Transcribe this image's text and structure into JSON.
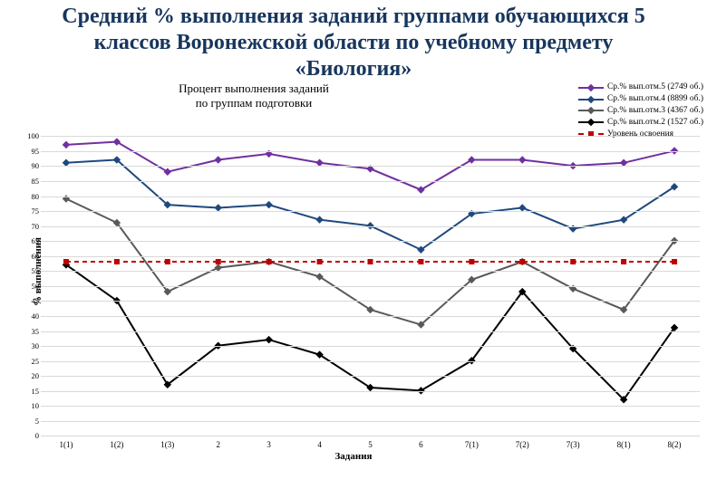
{
  "title": "Средний % выполнения заданий группами обучающихся 5 классов Воронежской области по учебному предмету «Биология»",
  "chart": {
    "subtitle": "Процент выполнения заданий\nпо группам подготовки",
    "ylabel": "% выполнения",
    "xlabel": "Задания",
    "ylim": [
      0,
      100
    ],
    "ytick_step": 5,
    "grid_color": "#d9d9d9",
    "background_color": "#ffffff",
    "categories": [
      "1(1)",
      "1(2)",
      "1(3)",
      "2",
      "3",
      "4",
      "5",
      "6",
      "7(1)",
      "7(2)",
      "7(3)",
      "8(1)",
      "8(2)"
    ],
    "series": [
      {
        "name": "Ср.% вып.отм.5 (2749 об.)",
        "color": "#7030a0",
        "marker": "diamond",
        "linewidth": 2,
        "values": [
          97,
          98,
          88,
          92,
          94,
          91,
          89,
          82,
          92,
          92,
          90,
          91,
          95
        ]
      },
      {
        "name": "Ср.% вып.отм.4 (8899 об.)",
        "color": "#1f497d",
        "marker": "diamond",
        "linewidth": 2,
        "values": [
          91,
          92,
          77,
          76,
          77,
          72,
          70,
          62,
          74,
          76,
          69,
          72,
          83
        ]
      },
      {
        "name": "Ср.% вып.отм.3 (4367 об.)",
        "color": "#595959",
        "marker": "diamond",
        "linewidth": 2,
        "values": [
          79,
          71,
          48,
          56,
          58,
          53,
          42,
          37,
          52,
          58,
          49,
          42,
          65
        ]
      },
      {
        "name": "Ср.% вып.отм.2 (1527 об.)",
        "color": "#000000",
        "marker": "diamond",
        "linewidth": 2,
        "values": [
          57,
          45,
          17,
          30,
          32,
          27,
          16,
          15,
          25,
          48,
          29,
          12,
          36
        ]
      },
      {
        "name": "Уровень освоения",
        "color": "#c00000",
        "marker": "square",
        "dash": "5,4",
        "linewidth": 2,
        "values": [
          58,
          58,
          58,
          58,
          58,
          58,
          58,
          58,
          58,
          58,
          58,
          58,
          58
        ]
      }
    ],
    "marker_size": 6,
    "tick_fontsize": 9,
    "label_fontsize": 11
  }
}
